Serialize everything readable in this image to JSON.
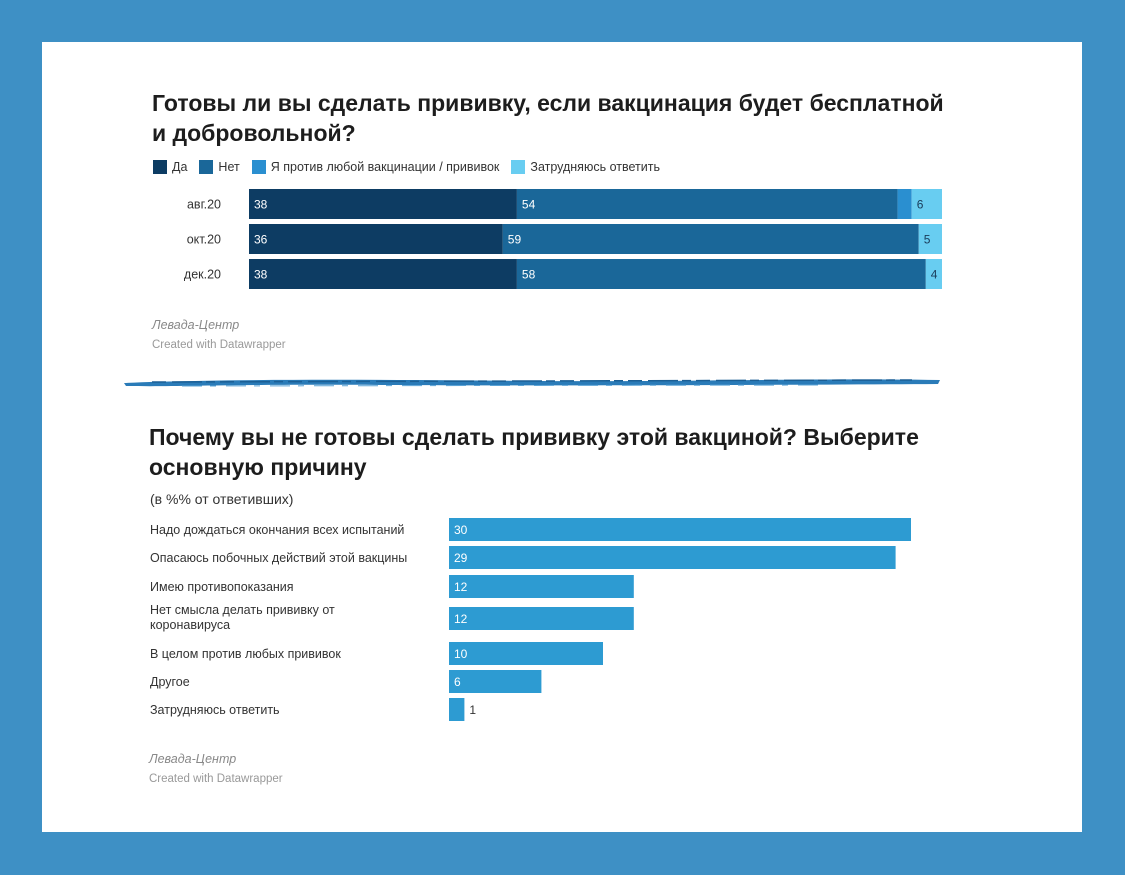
{
  "chart_data": [
    {
      "type": "bar",
      "orientation": "horizontal",
      "stacked": true,
      "title": "Готовы ли вы сделать прививку, если вакцинация будет бесплатной и добровольной?",
      "categories": [
        "авг.20",
        "окт.20",
        "дек.20"
      ],
      "series": [
        {
          "name": "Да",
          "color": "#0d3c63",
          "values": [
            38,
            36,
            38
          ]
        },
        {
          "name": "Нет",
          "color": "#1a6799",
          "values": [
            54,
            59,
            58
          ]
        },
        {
          "name": "Я против любой вакцинации / прививок",
          "color": "#2a8fd0",
          "values": [
            2,
            0,
            0
          ]
        },
        {
          "name": "Затрудняюсь ответить",
          "color": "#68cdf1",
          "values": [
            6,
            5,
            4
          ]
        }
      ],
      "data_labels": [
        [
          "38",
          "54",
          "",
          "6"
        ],
        [
          "36",
          "59",
          "",
          "5"
        ],
        [
          "38",
          "58",
          "",
          "4"
        ]
      ],
      "source": "Левада-Центр",
      "credit": "Created with Datawrapper"
    },
    {
      "type": "bar",
      "orientation": "horizontal",
      "title": "Почему вы не готовы сделать прививку этой вакциной? Выберите основную причину",
      "subtitle": "(в %% от ответивших)",
      "categories": [
        [
          "Надо дождаться окончания всех испытаний"
        ],
        [
          "Опасаюсь побочных действий этой вакцины"
        ],
        [
          "Имею противопоказания"
        ],
        [
          "Нет смысла делать прививку от",
          "коронавируса"
        ],
        [
          "В целом против любых прививок"
        ],
        [
          "Другое"
        ],
        [
          "Затрудняюсь ответить"
        ]
      ],
      "values": [
        30,
        29,
        12,
        12,
        10,
        6,
        1
      ],
      "color": "#2d9bd2",
      "source": "Левада-Центр",
      "credit": "Created with Datawrapper"
    }
  ]
}
